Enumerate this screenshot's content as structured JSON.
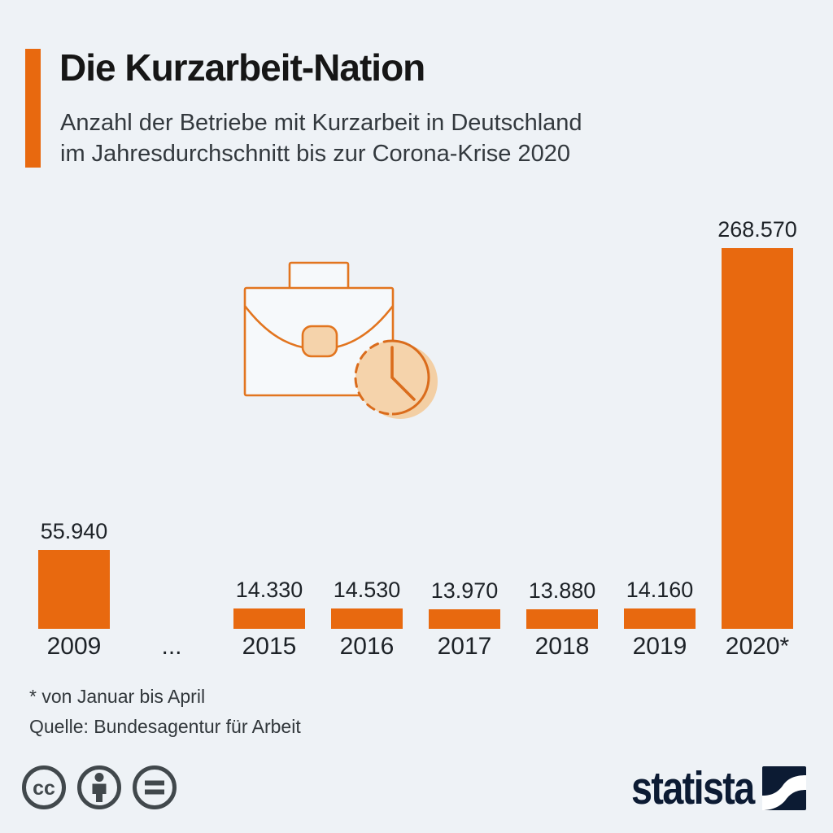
{
  "header": {
    "title": "Die Kurzarbeit-Nation",
    "subtitle_line1": "Anzahl der Betriebe mit Kurzarbeit in Deutschland",
    "subtitle_line2": "im Jahresdurchschnitt bis zur Corona-Krise 2020"
  },
  "chart_data": {
    "type": "bar",
    "title": "Die Kurzarbeit-Nation",
    "subtitle": "Anzahl der Betriebe mit Kurzarbeit in Deutschland im Jahresdurchschnitt bis zur Corona-Krise 2020",
    "categories": [
      "2009",
      "...",
      "2015",
      "2016",
      "2017",
      "2018",
      "2019",
      "2020*"
    ],
    "values": [
      55940,
      null,
      14330,
      14530,
      13970,
      13880,
      14160,
      268570
    ],
    "value_labels": [
      "55.940",
      "",
      "14.330",
      "14.530",
      "13.970",
      "13.880",
      "14.160",
      "268.570"
    ],
    "ylim": [
      0,
      268570
    ],
    "xlabel": "",
    "ylabel": "",
    "grid": false,
    "legend": "none",
    "bar_color": "#e8690f"
  },
  "icons": {
    "hero": "briefcase-clock-icon",
    "license": [
      "creative-commons-icon",
      "attribution-person-icon",
      "no-derivatives-equals-icon"
    ]
  },
  "footer": {
    "note": "* von Januar bis April",
    "source": "Quelle: Bundesagentur für Arbeit"
  },
  "branding": {
    "logo_text": "statista"
  },
  "colors": {
    "background": "#eef2f6",
    "accent_orange": "#e8690f",
    "icon_outline": "#e2751f",
    "icon_fill": "#f5d3ab",
    "text_dark": "#1d2227",
    "statista_navy": "#0c1b33",
    "license_gray": "#41484c"
  }
}
